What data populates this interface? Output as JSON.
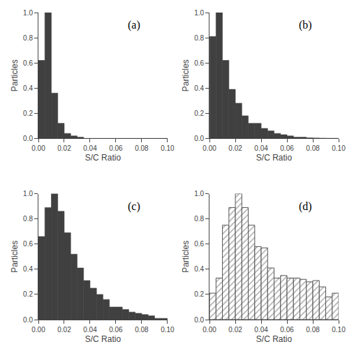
{
  "chart_data": [
    {
      "type": "histogram",
      "bins": [
        0,
        0.005,
        0.01,
        0.015,
        0.02,
        0.025,
        0.03,
        0.035,
        0.04,
        0.045,
        0.05,
        0.055,
        0.06,
        0.065,
        0.07,
        0.075,
        0.08,
        0.085,
        0.09,
        0.095,
        0.1
      ],
      "values": [
        0.62,
        1.0,
        0.36,
        0.12,
        0.04,
        0.02,
        0.01,
        0.0,
        0.0,
        0.0,
        0.0,
        0.0,
        0.0,
        0.0,
        0.0,
        0.0,
        0.0,
        0.0,
        0.0,
        0.0
      ],
      "color": "#404040",
      "annotations": [
        "(a)"
      ],
      "xlabel": "S/C Ratio",
      "ylabel": "Particles",
      "xlim": [
        0.0,
        0.1
      ],
      "ylim": [
        0.0,
        1.0
      ],
      "xticks": [
        {
          "value": 0.0,
          "label": "0.00"
        },
        0.02,
        0.04,
        0.06,
        0.08,
        {
          "value": 0.1,
          "label": "0.10"
        }
      ],
      "yticks": [
        {
          "value": 0.0,
          "label": "0.0"
        },
        0.2,
        0.4,
        0.6,
        0.8,
        {
          "value": 1.0,
          "label": "1.0"
        }
      ],
      "grid": false
    },
    {
      "type": "histogram",
      "bins": [
        0,
        0.005,
        0.01,
        0.015,
        0.02,
        0.025,
        0.03,
        0.035,
        0.04,
        0.045,
        0.05,
        0.055,
        0.06,
        0.065,
        0.07,
        0.075,
        0.08,
        0.085,
        0.09,
        0.095,
        0.1
      ],
      "values": [
        0.81,
        1.0,
        0.62,
        0.39,
        0.28,
        0.18,
        0.12,
        0.12,
        0.08,
        0.06,
        0.04,
        0.03,
        0.02,
        0.01,
        0.01,
        0.005,
        0.003,
        0.002,
        0.001,
        0.001
      ],
      "color": "#404040",
      "annotations": [
        "(b)"
      ],
      "xlabel": "S/C Ratio",
      "ylabel": "Particles",
      "xlim": [
        0.0,
        0.1
      ],
      "ylim": [
        0.0,
        1.0
      ],
      "xticks": [
        {
          "value": 0.0,
          "label": "0.00"
        },
        0.02,
        0.04,
        0.06,
        0.08,
        {
          "value": 0.1,
          "label": "0.10"
        }
      ],
      "yticks": [
        {
          "value": 0.0,
          "label": "0.0"
        },
        0.2,
        0.4,
        0.6,
        0.8,
        {
          "value": 1.0,
          "label": "1.0"
        }
      ],
      "grid": false
    },
    {
      "type": "histogram",
      "bins": [
        0,
        0.005,
        0.01,
        0.015,
        0.02,
        0.025,
        0.03,
        0.035,
        0.04,
        0.045,
        0.05,
        0.055,
        0.06,
        0.065,
        0.07,
        0.075,
        0.08,
        0.085,
        0.09,
        0.095,
        0.1
      ],
      "values": [
        0.66,
        0.89,
        1.0,
        0.86,
        0.69,
        0.52,
        0.41,
        0.31,
        0.25,
        0.2,
        0.16,
        0.1,
        0.1,
        0.08,
        0.06,
        0.05,
        0.04,
        0.03,
        0.01,
        0.01
      ],
      "color": "#404040",
      "annotations": [
        "(c)"
      ],
      "xlabel": "S/C Ratio",
      "ylabel": "Particles",
      "xlim": [
        0.0,
        0.1
      ],
      "ylim": [
        0.0,
        1.0
      ],
      "xticks": [
        {
          "value": 0.0,
          "label": "0.00"
        },
        0.02,
        0.04,
        0.06,
        0.08,
        {
          "value": 0.1,
          "label": "0.10"
        }
      ],
      "yticks": [
        {
          "value": 0.0,
          "label": "0.0"
        },
        0.2,
        0.4,
        0.6,
        0.8,
        {
          "value": 1.0,
          "label": "1.0"
        }
      ],
      "grid": false
    },
    {
      "type": "histogram",
      "bins": [
        0,
        0.005,
        0.01,
        0.015,
        0.02,
        0.025,
        0.03,
        0.035,
        0.04,
        0.045,
        0.05,
        0.055,
        0.06,
        0.065,
        0.07,
        0.075,
        0.08,
        0.085,
        0.09,
        0.095,
        0.1
      ],
      "values": [
        0.21,
        0.33,
        0.75,
        0.89,
        1.0,
        0.89,
        0.75,
        0.58,
        0.57,
        0.41,
        0.33,
        0.35,
        0.33,
        0.33,
        0.32,
        0.3,
        0.31,
        0.26,
        0.18,
        0.21
      ],
      "color": "#555555",
      "marker": "hatched",
      "annotations": [
        "(d)"
      ],
      "xlabel": "S/C Ratio",
      "ylabel": "Particles",
      "xlim": [
        0.0,
        0.1
      ],
      "ylim": [
        0.0,
        1.0
      ],
      "xticks": [
        {
          "value": 0.0,
          "label": "0.00"
        },
        0.02,
        0.04,
        0.06,
        0.08,
        {
          "value": 0.1,
          "label": "0.10"
        }
      ],
      "yticks": [
        {
          "value": 0.0,
          "label": "0.0"
        },
        0.2,
        0.4,
        0.6,
        0.8,
        {
          "value": 1.0,
          "label": "1.0"
        }
      ],
      "grid": false
    }
  ]
}
